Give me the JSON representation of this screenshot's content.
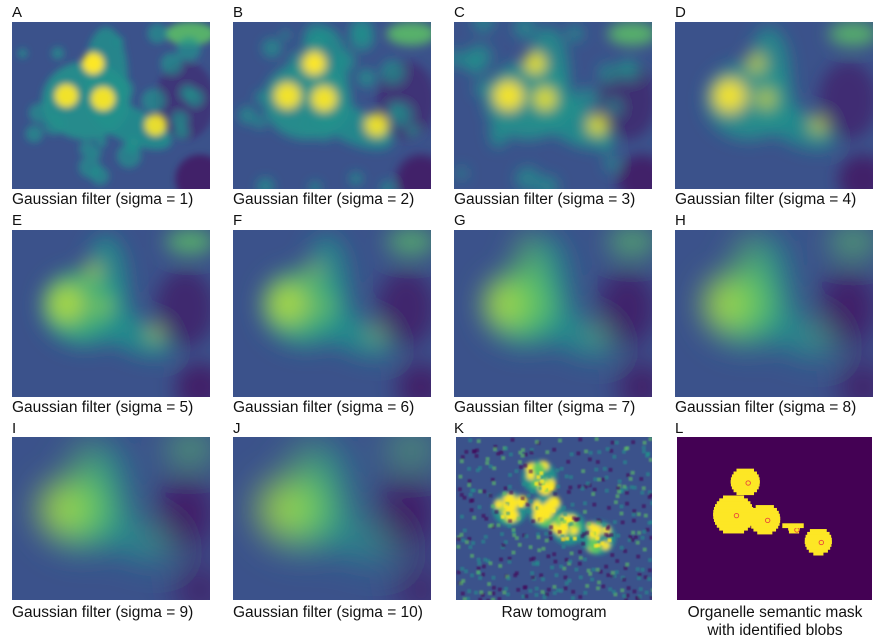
{
  "panels": [
    {
      "letter": "A",
      "caption": "Gaussian filter (sigma = 1)",
      "sigma": 1,
      "kind": "gauss"
    },
    {
      "letter": "B",
      "caption": "Gaussian filter (sigma = 2)",
      "sigma": 2,
      "kind": "gauss"
    },
    {
      "letter": "C",
      "caption": "Gaussian filter (sigma = 3)",
      "sigma": 3,
      "kind": "gauss"
    },
    {
      "letter": "D",
      "caption": "Gaussian filter (sigma = 4)",
      "sigma": 4,
      "kind": "gauss"
    },
    {
      "letter": "E",
      "caption": "Gaussian filter (sigma = 5)",
      "sigma": 5,
      "kind": "gauss"
    },
    {
      "letter": "F",
      "caption": "Gaussian filter (sigma = 6)",
      "sigma": 6,
      "kind": "gauss"
    },
    {
      "letter": "G",
      "caption": "Gaussian filter (sigma = 7)",
      "sigma": 7,
      "kind": "gauss"
    },
    {
      "letter": "H",
      "caption": "Gaussian filter (sigma = 8)",
      "sigma": 8,
      "kind": "gauss"
    },
    {
      "letter": "I",
      "caption": "Gaussian filter (sigma = 9)",
      "sigma": 9,
      "kind": "gauss"
    },
    {
      "letter": "J",
      "caption": "Gaussian filter (sigma = 10)",
      "sigma": 10,
      "kind": "gauss"
    },
    {
      "letter": "K",
      "caption": "Raw tomogram",
      "kind": "raw"
    },
    {
      "letter": "L",
      "caption_line1": "Organelle semantic mask",
      "caption_line2": "with identified blobs",
      "kind": "mask"
    }
  ],
  "colors": {
    "viridis_dark": "#440154",
    "viridis_blue": "#3b528b",
    "viridis_teal": "#21918c",
    "viridis_green": "#5ec962",
    "viridis_yellow": "#fde725",
    "mask_bg": "#440154",
    "mask_fg": "#fde725",
    "blob_marker": "#e8453c"
  }
}
